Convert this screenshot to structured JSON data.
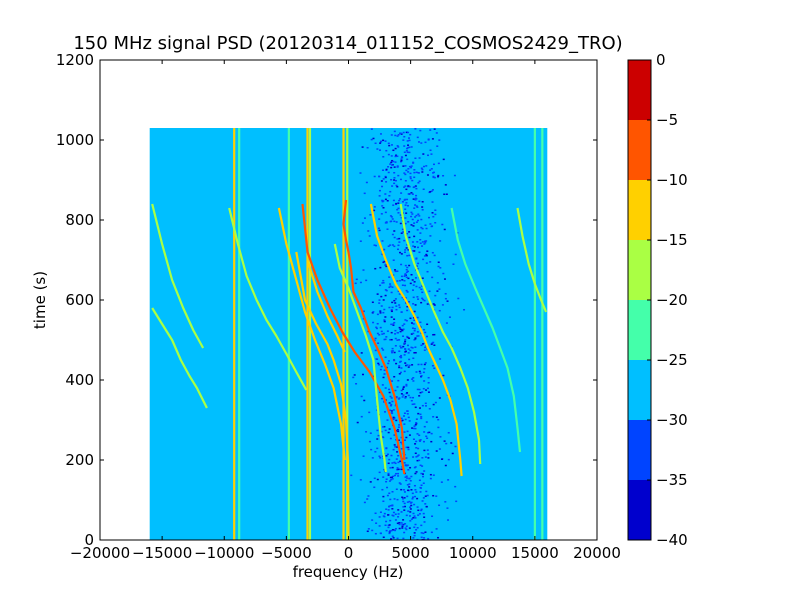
{
  "chart_data": {
    "type": "heatmap",
    "title": "150 MHz signal PSD (20120314_011152_COSMOS2429_TRO)",
    "xlabel": "frequency (Hz)",
    "ylabel": "time (s)",
    "xlim": [
      -20000,
      20000
    ],
    "ylim": [
      0,
      1200
    ],
    "x_ticks": [
      -20000,
      -15000,
      -10000,
      -5000,
      0,
      5000,
      10000,
      15000,
      20000
    ],
    "x_tick_labels": [
      "−20000",
      "−15000",
      "−10000",
      "−5000",
      "0",
      "5000",
      "10000",
      "15000",
      "20000"
    ],
    "y_ticks": [
      0,
      200,
      400,
      600,
      800,
      1000,
      1200
    ],
    "y_tick_labels": [
      "0",
      "200",
      "400",
      "600",
      "800",
      "1000",
      "1200"
    ],
    "data_extent": {
      "x": [
        -16000,
        16000
      ],
      "y": [
        0,
        1030
      ]
    },
    "background_level": -27,
    "colorbar": {
      "levels": [
        -40,
        -35,
        -30,
        -25,
        -20,
        -15,
        -10,
        -5,
        0
      ],
      "tick_labels": [
        "−40",
        "−35",
        "−30",
        "−25",
        "−20",
        "−15",
        "−10",
        "−5",
        "0"
      ],
      "colors": [
        "#0000cd",
        "#0044ff",
        "#00bfff",
        "#44ffaa",
        "#aaff44",
        "#ffd000",
        "#ff5500",
        "#cc0000"
      ]
    },
    "noise_band": {
      "x": [
        2000,
        7000
      ],
      "y": [
        0,
        1030
      ],
      "levels": [
        -32,
        -38
      ]
    },
    "vertical_lines": [
      {
        "x": -9200,
        "level": -15
      },
      {
        "x": -8800,
        "level": -22
      },
      {
        "x": -4800,
        "level": -22
      },
      {
        "x": -3300,
        "level": -12
      },
      {
        "x": -3100,
        "level": -18
      },
      {
        "x": -400,
        "level": -12
      },
      {
        "x": -100,
        "level": -17
      },
      {
        "x": 15000,
        "level": -22
      },
      {
        "x": 15600,
        "level": -22
      }
    ],
    "traces": [
      {
        "points": [
          [
            -15800,
            840
          ],
          [
            -15000,
            740
          ],
          [
            -14200,
            650
          ],
          [
            -13300,
            580
          ],
          [
            -12500,
            525
          ],
          [
            -11700,
            480
          ]
        ],
        "level": -20
      },
      {
        "points": [
          [
            -15800,
            580
          ],
          [
            -15000,
            540
          ],
          [
            -14200,
            500
          ],
          [
            -13500,
            450
          ],
          [
            -12800,
            410
          ],
          [
            -12200,
            380
          ],
          [
            -11400,
            330
          ]
        ],
        "level": -20
      },
      {
        "points": [
          [
            -9600,
            830
          ],
          [
            -8900,
            740
          ],
          [
            -8200,
            660
          ],
          [
            -7400,
            600
          ],
          [
            -6600,
            550
          ],
          [
            -5800,
            510
          ],
          [
            -4900,
            460
          ],
          [
            -4200,
            420
          ],
          [
            -3400,
            375
          ]
        ],
        "level": -20
      },
      {
        "points": [
          [
            -5600,
            830
          ],
          [
            -5000,
            740
          ],
          [
            -4200,
            650
          ],
          [
            -3500,
            570
          ],
          [
            -2700,
            500
          ],
          [
            -1900,
            440
          ],
          [
            -1200,
            380
          ],
          [
            -600,
            290
          ],
          [
            -300,
            200
          ]
        ],
        "level": -15
      },
      {
        "points": [
          [
            -3700,
            840
          ],
          [
            -3300,
            720
          ],
          [
            -2500,
            650
          ],
          [
            -1500,
            580
          ],
          [
            -500,
            520
          ],
          [
            500,
            470
          ],
          [
            1700,
            420
          ],
          [
            2800,
            360
          ],
          [
            3700,
            280
          ],
          [
            4300,
            200
          ],
          [
            4500,
            165
          ]
        ],
        "level": -10
      },
      {
        "points": [
          [
            -3300,
            700
          ],
          [
            -2500,
            620
          ],
          [
            -1700,
            560
          ],
          [
            -900,
            510
          ],
          [
            -300,
            470
          ]
        ],
        "level": -15
      },
      {
        "points": [
          [
            -4200,
            720
          ],
          [
            -3500,
            600
          ],
          [
            -2600,
            540
          ],
          [
            -1700,
            490
          ],
          [
            -1200,
            450
          ],
          [
            -600,
            390
          ],
          [
            -200,
            300
          ],
          [
            -50,
            200
          ],
          [
            0,
            0
          ]
        ],
        "level": -15
      },
      {
        "points": [
          [
            -200,
            850
          ],
          [
            -400,
            790
          ],
          [
            -200,
            750
          ],
          [
            0,
            720
          ],
          [
            200,
            680
          ],
          [
            400,
            620
          ],
          [
            1000,
            580
          ],
          [
            1700,
            520
          ],
          [
            2300,
            480
          ],
          [
            3000,
            430
          ],
          [
            3700,
            360
          ],
          [
            4300,
            280
          ],
          [
            4500,
            200
          ]
        ],
        "level": -8
      },
      {
        "points": [
          [
            1800,
            840
          ],
          [
            2300,
            760
          ],
          [
            3000,
            700
          ],
          [
            3800,
            640
          ],
          [
            4600,
            600
          ],
          [
            5300,
            560
          ],
          [
            5900,
            520
          ],
          [
            6400,
            480
          ],
          [
            7000,
            440
          ],
          [
            7600,
            400
          ],
          [
            8200,
            350
          ],
          [
            8700,
            290
          ],
          [
            9000,
            200
          ],
          [
            9100,
            160
          ]
        ],
        "level": -15
      },
      {
        "points": [
          [
            -1100,
            740
          ],
          [
            -700,
            680
          ],
          [
            0,
            630
          ],
          [
            700,
            570
          ],
          [
            1400,
            510
          ],
          [
            2000,
            450
          ],
          [
            2300,
            350
          ],
          [
            2600,
            260
          ],
          [
            2900,
            200
          ],
          [
            3000,
            170
          ]
        ],
        "level": -20
      },
      {
        "points": [
          [
            4200,
            840
          ],
          [
            4600,
            760
          ],
          [
            5300,
            690
          ],
          [
            6100,
            630
          ],
          [
            6900,
            570
          ],
          [
            7600,
            520
          ],
          [
            8300,
            480
          ],
          [
            9000,
            430
          ],
          [
            9600,
            380
          ],
          [
            10100,
            320
          ],
          [
            10500,
            250
          ],
          [
            10600,
            190
          ]
        ],
        "level": -20
      },
      {
        "points": [
          [
            8300,
            830
          ],
          [
            8800,
            750
          ],
          [
            9400,
            690
          ],
          [
            10200,
            630
          ],
          [
            10900,
            580
          ],
          [
            11600,
            530
          ],
          [
            12200,
            480
          ],
          [
            12800,
            430
          ],
          [
            13300,
            360
          ],
          [
            13600,
            280
          ],
          [
            13800,
            220
          ]
        ],
        "level": -22
      },
      {
        "points": [
          [
            13600,
            830
          ],
          [
            14000,
            760
          ],
          [
            14500,
            690
          ],
          [
            15000,
            640
          ],
          [
            15500,
            600
          ],
          [
            15900,
            570
          ]
        ],
        "level": -20
      }
    ]
  }
}
